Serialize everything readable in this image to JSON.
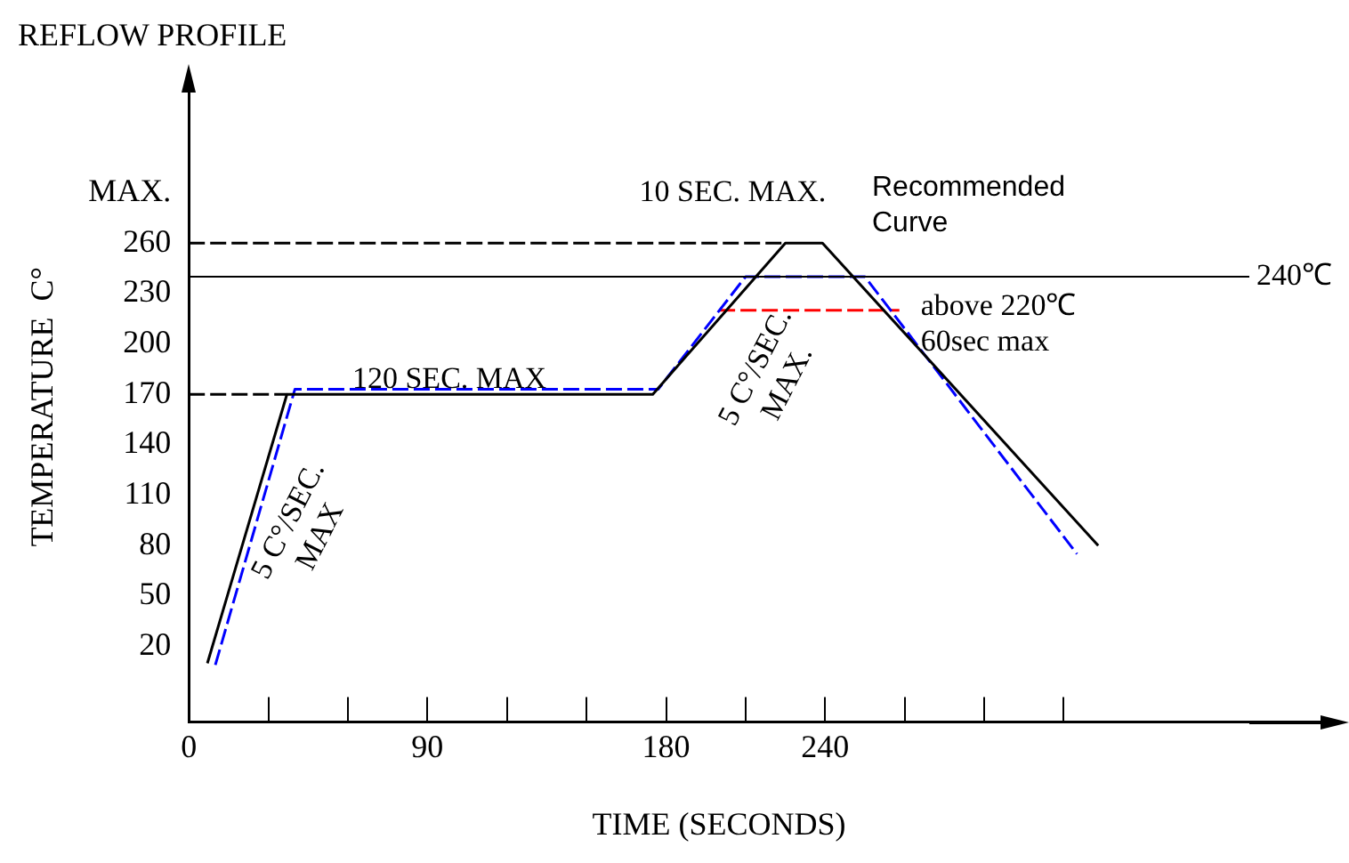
{
  "chart_data": {
    "type": "line",
    "title": "REFLOW PROFILE",
    "xlabel": "TIME (SECONDS)",
    "ylabel": "TEMPERATURE  C°",
    "xlim": [
      0,
      400
    ],
    "ylim": [
      -25,
      350
    ],
    "xticks": [
      0,
      {
        "value": 30,
        "label": null
      },
      {
        "value": 60,
        "label": null
      },
      90,
      {
        "value": 120,
        "label": null
      },
      {
        "value": 150,
        "label": null
      },
      180,
      {
        "value": 210,
        "label": null
      },
      240,
      {
        "value": 270,
        "label": null
      },
      {
        "value": 300,
        "label": null
      },
      {
        "value": 330,
        "label": null
      }
    ],
    "yticks": [
      20,
      50,
      80,
      110,
      140,
      170,
      200,
      230,
      260,
      {
        "value": 290,
        "label": "MAX."
      }
    ],
    "grid": false,
    "legend": false,
    "marker": "none",
    "series": [
      {
        "color": "#000000",
        "x": [
          7,
          37,
          175,
          225,
          239,
          343
        ],
        "values": [
          10,
          170,
          170,
          260,
          260,
          80
        ],
        "line_style": "solid"
      },
      {
        "color": "#0000ff",
        "x": [
          10,
          40,
          177,
          210,
          255,
          335
        ],
        "values": [
          9,
          173,
          173,
          240,
          240,
          75
        ],
        "line_style": "dashed"
      },
      {
        "color": "#ff0000",
        "x": [
          200,
          268
        ],
        "values": [
          220,
          220
        ],
        "line_style": "dashed"
      },
      {
        "color": "#000000",
        "x": [
          0,
          37
        ],
        "values": [
          170,
          170
        ],
        "line_style": "dashed"
      },
      {
        "color": "#000000",
        "x": [
          0,
          225
        ],
        "values": [
          260,
          260
        ],
        "line_style": "dashed"
      }
    ],
    "ref_lines": [
      {
        "axis": "y",
        "value": 240,
        "label": "240℃",
        "color": "#000000",
        "line_style": "solid"
      }
    ],
    "annotations": [
      {
        "text": "120 SEC. MAX",
        "x": 105,
        "y": 170
      },
      {
        "text": "5 C°/SEC.\nMAX",
        "x": 25,
        "y": 90
      },
      "5 C°/SEC.\nMAX.",
      {
        "text": "above 220℃\n60sec max",
        "x": 268,
        "y": 220
      },
      {
        "text": "10 SEC. MAX.",
        "x": 232,
        "y": 260
      },
      {
        "text": "Recommended\nCurve",
        "x": 255,
        "y": 240
      }
    ]
  }
}
